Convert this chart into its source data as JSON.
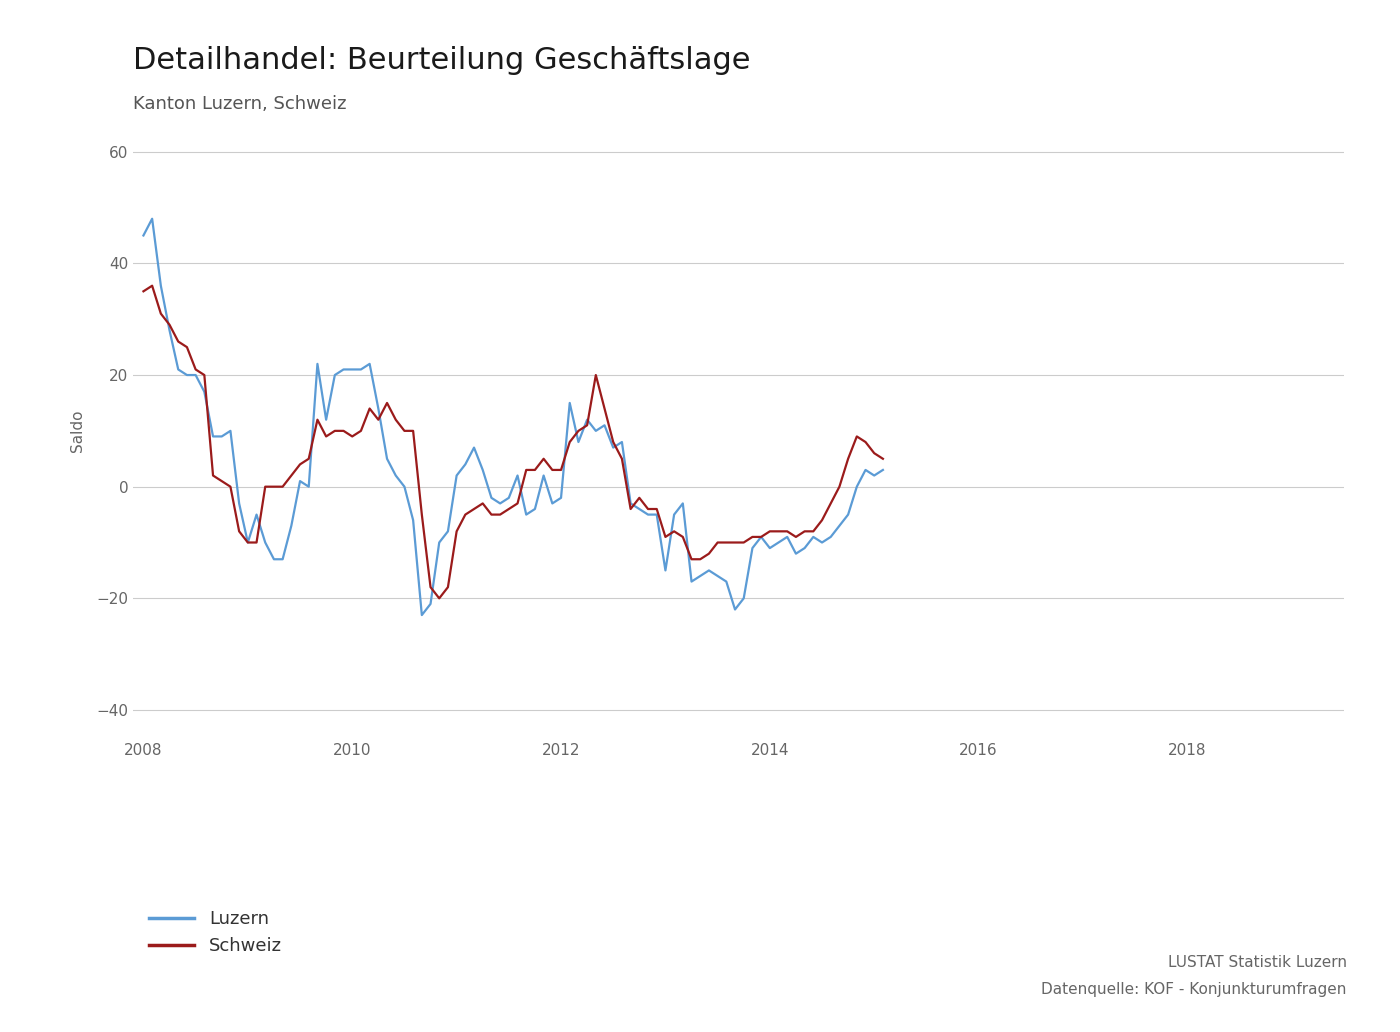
{
  "title": "Detailhandel: Beurteilung Geschäftslage",
  "subtitle": "Kanton Luzern, Schweiz",
  "ylabel": "Saldo",
  "source1": "LUSTAT Statistik Luzern",
  "source2": "Datenquelle: KOF - Konjunkturumfragen",
  "color_luzern": "#5b9bd5",
  "color_schweiz": "#9b1b1b",
  "legend_luzern": "Luzern",
  "legend_schweiz": "Schweiz",
  "background_color": "#ffffff",
  "ylim_top": 65,
  "ylim_bottom": -45,
  "yticks": [
    -40,
    -20,
    0,
    20,
    40,
    60
  ],
  "xticks": [
    2008,
    2010,
    2012,
    2014,
    2016,
    2018
  ],
  "xlim": [
    2007.9,
    2019.5
  ],
  "values_luzern": [
    45,
    48,
    36,
    28,
    21,
    20,
    20,
    17,
    9,
    9,
    10,
    -3,
    -10,
    -5,
    -10,
    -13,
    -13,
    -7,
    1,
    0,
    22,
    12,
    20,
    21,
    21,
    21,
    22,
    14,
    5,
    2,
    0,
    -6,
    -23,
    -21,
    -10,
    -8,
    2,
    4,
    7,
    3,
    -2,
    -3,
    -2,
    2,
    -5,
    -4,
    2,
    -3,
    -2,
    15,
    8,
    12,
    10,
    11,
    7,
    8,
    -3,
    -4,
    -5,
    -5,
    -15,
    -5,
    -3,
    -17,
    -16,
    -15,
    -16,
    -17,
    -22,
    -20,
    -11,
    -9,
    -11,
    -10,
    -9,
    -12,
    -11,
    -9,
    -10,
    -9,
    -7,
    -5,
    0,
    3,
    2,
    3
  ],
  "values_schweiz": [
    35,
    36,
    31,
    29,
    26,
    25,
    21,
    20,
    2,
    1,
    0,
    -8,
    -10,
    -10,
    0,
    0,
    0,
    2,
    4,
    5,
    12,
    9,
    10,
    10,
    9,
    10,
    14,
    12,
    15,
    12,
    10,
    10,
    -5,
    -18,
    -20,
    -18,
    -8,
    -5,
    -4,
    -3,
    -5,
    -5,
    -4,
    -3,
    3,
    3,
    5,
    3,
    3,
    8,
    10,
    11,
    20,
    14,
    8,
    5,
    -4,
    -2,
    -4,
    -4,
    -9,
    -8,
    -9,
    -13,
    -13,
    -12,
    -10,
    -10,
    -10,
    -10,
    -9,
    -9,
    -8,
    -8,
    -8,
    -9,
    -8,
    -8,
    -6,
    -3,
    0,
    5,
    9,
    8,
    6,
    5
  ]
}
